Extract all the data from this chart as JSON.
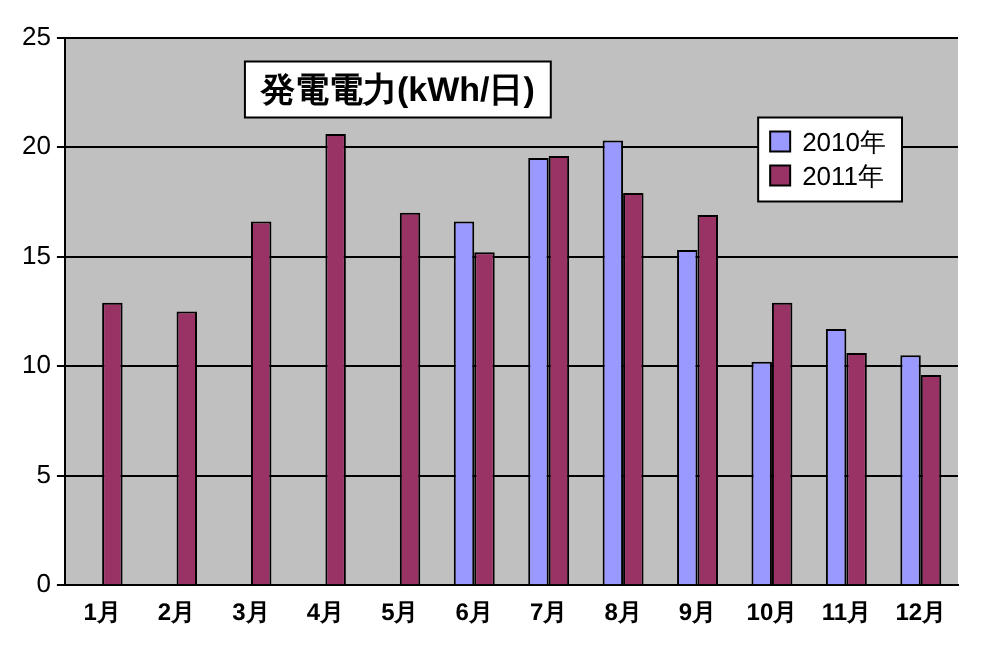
{
  "chart_data": {
    "type": "bar",
    "title": "発電電力(kWh/日)",
    "categories": [
      "1月",
      "2月",
      "3月",
      "4月",
      "5月",
      "6月",
      "7月",
      "8月",
      "9月",
      "10月",
      "11月",
      "12月"
    ],
    "series": [
      {
        "name": "2010年",
        "color": "#9999ff",
        "values": [
          null,
          null,
          null,
          null,
          null,
          16.6,
          19.5,
          20.3,
          15.3,
          10.2,
          11.7,
          10.5
        ]
      },
      {
        "name": "2011年",
        "color": "#993366",
        "values": [
          12.9,
          12.5,
          16.6,
          20.6,
          17.0,
          15.2,
          19.6,
          17.9,
          16.9,
          12.9,
          10.6,
          9.6
        ]
      }
    ],
    "ylim": [
      0,
      25
    ],
    "yticks": [
      0,
      5,
      10,
      15,
      20,
      25
    ],
    "grid": "y",
    "legend": "top right"
  }
}
